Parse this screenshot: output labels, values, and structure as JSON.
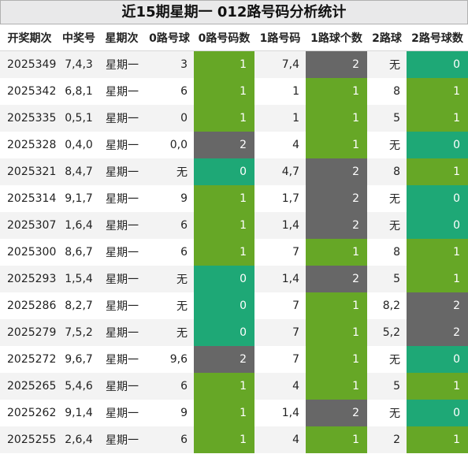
{
  "title": "近15期星期一 012路号码分析统计",
  "headers": [
    "开奖期次",
    "中奖号",
    "星期次",
    "0路号球",
    "0路号码数",
    "1路号码",
    "1路球个数",
    "2路球",
    "2路号球数"
  ],
  "colors": {
    "count_0": "#1ea876",
    "count_1": "#66a726",
    "count_2": "#676767"
  },
  "rows": [
    {
      "issue": "2025349",
      "win": "7,4,3",
      "week": "星期一",
      "r0": "3",
      "r0c": "1",
      "r1": "7,4",
      "r1c": "2",
      "r2": "无",
      "r2c": "0"
    },
    {
      "issue": "2025342",
      "win": "6,8,1",
      "week": "星期一",
      "r0": "6",
      "r0c": "1",
      "r1": "1",
      "r1c": "1",
      "r2": "8",
      "r2c": "1"
    },
    {
      "issue": "2025335",
      "win": "0,5,1",
      "week": "星期一",
      "r0": "0",
      "r0c": "1",
      "r1": "1",
      "r1c": "1",
      "r2": "5",
      "r2c": "1"
    },
    {
      "issue": "2025328",
      "win": "0,4,0",
      "week": "星期一",
      "r0": "0,0",
      "r0c": "2",
      "r1": "4",
      "r1c": "1",
      "r2": "无",
      "r2c": "0"
    },
    {
      "issue": "2025321",
      "win": "8,4,7",
      "week": "星期一",
      "r0": "无",
      "r0c": "0",
      "r1": "4,7",
      "r1c": "2",
      "r2": "8",
      "r2c": "1"
    },
    {
      "issue": "2025314",
      "win": "9,1,7",
      "week": "星期一",
      "r0": "9",
      "r0c": "1",
      "r1": "1,7",
      "r1c": "2",
      "r2": "无",
      "r2c": "0"
    },
    {
      "issue": "2025307",
      "win": "1,6,4",
      "week": "星期一",
      "r0": "6",
      "r0c": "1",
      "r1": "1,4",
      "r1c": "2",
      "r2": "无",
      "r2c": "0"
    },
    {
      "issue": "2025300",
      "win": "8,6,7",
      "week": "星期一",
      "r0": "6",
      "r0c": "1",
      "r1": "7",
      "r1c": "1",
      "r2": "8",
      "r2c": "1"
    },
    {
      "issue": "2025293",
      "win": "1,5,4",
      "week": "星期一",
      "r0": "无",
      "r0c": "0",
      "r1": "1,4",
      "r1c": "2",
      "r2": "5",
      "r2c": "1"
    },
    {
      "issue": "2025286",
      "win": "8,2,7",
      "week": "星期一",
      "r0": "无",
      "r0c": "0",
      "r1": "7",
      "r1c": "1",
      "r2": "8,2",
      "r2c": "2"
    },
    {
      "issue": "2025279",
      "win": "7,5,2",
      "week": "星期一",
      "r0": "无",
      "r0c": "0",
      "r1": "7",
      "r1c": "1",
      "r2": "5,2",
      "r2c": "2"
    },
    {
      "issue": "2025272",
      "win": "9,6,7",
      "week": "星期一",
      "r0": "9,6",
      "r0c": "2",
      "r1": "7",
      "r1c": "1",
      "r2": "无",
      "r2c": "0"
    },
    {
      "issue": "2025265",
      "win": "5,4,6",
      "week": "星期一",
      "r0": "6",
      "r0c": "1",
      "r1": "4",
      "r1c": "1",
      "r2": "5",
      "r2c": "1"
    },
    {
      "issue": "2025262",
      "win": "9,1,4",
      "week": "星期一",
      "r0": "9",
      "r0c": "1",
      "r1": "1,4",
      "r1c": "2",
      "r2": "无",
      "r2c": "0"
    },
    {
      "issue": "2025255",
      "win": "2,6,4",
      "week": "星期一",
      "r0": "6",
      "r0c": "1",
      "r1": "4",
      "r1c": "1",
      "r2": "2",
      "r2c": "1"
    }
  ]
}
